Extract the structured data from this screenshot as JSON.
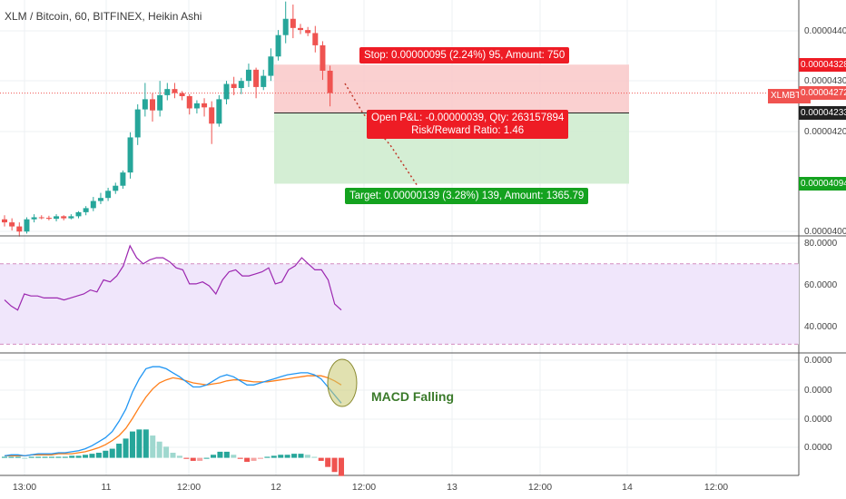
{
  "title": "XLM / Bitcoin, 60, BITFINEX, Heikin Ashi",
  "symbol_tag": "XLMBTC",
  "price_tags": [
    {
      "text": "0.00004328",
      "bg": "#ee1c25",
      "fg": "#ffffff",
      "price": 4.328e-05
    },
    {
      "text": "0.00004272",
      "bg": "#f05350",
      "fg": "#ffffff",
      "price": 4.272e-05
    },
    {
      "text": "0.00004233",
      "bg": "#222222",
      "fg": "#ffffff",
      "price": 4.233e-05
    },
    {
      "text": "0.00004094",
      "bg": "#14a21f",
      "fg": "#ffffff",
      "price": 4.094e-05
    }
  ],
  "price_axis_ticks": [
    "0.00004400",
    "0.00004300",
    "0.00004200",
    "0.00004000"
  ],
  "rsi_axis_ticks": [
    "80.0000",
    "60.0000",
    "40.0000"
  ],
  "macd_axis_ticks": [
    "0.0000",
    "0.0000",
    "0.0000",
    "0.0000"
  ],
  "time_axis_ticks": [
    "13:00",
    "11",
    "12:00",
    "12",
    "12:00",
    "13",
    "12:00",
    "14",
    "12:00"
  ],
  "position": {
    "stop_label": "Stop: 0.00000095 (2.24%) 95, Amount: 750",
    "pnl_line1": "Open P&L: -0.00000039, Qty: 263157894",
    "pnl_line2": "Risk/Reward Ratio: 1.46",
    "target_label": "Target: 0.00000139 (3.28%) 139, Amount: 1365.79",
    "entry": 4.233e-05,
    "stop": 4.328e-05,
    "target": 4.094e-05,
    "current": 4.272e-05
  },
  "annotation": "MACD  Falling",
  "colors": {
    "bull": "#26a69a",
    "bear": "#ef5350",
    "stop_zone": "#f9c8c8",
    "target_zone": "#cdebcd",
    "rsi_line": "#9c27b0",
    "rsi_band": "#f0e6fb",
    "macd_line": "#2196f3",
    "signal_line": "#ff7f1a"
  },
  "chart_data": {
    "type": "candlestick",
    "price_range": [
      3.995e-05,
      4.455e-05
    ],
    "candles": [
      {
        "o": 4.024e-05,
        "h": 4.032e-05,
        "l": 4.01e-05,
        "c": 4.018e-05
      },
      {
        "o": 4.018e-05,
        "h": 4.026e-05,
        "l": 4.002e-05,
        "c": 4.01e-05
      },
      {
        "o": 4.01e-05,
        "h": 4.018e-05,
        "l": 3.99e-05,
        "c": 4e-05
      },
      {
        "o": 4e-05,
        "h": 4.028e-05,
        "l": 3.996e-05,
        "c": 4.024e-05
      },
      {
        "o": 4.024e-05,
        "h": 4.034e-05,
        "l": 4.018e-05,
        "c": 4.028e-05
      },
      {
        "o": 4.028e-05,
        "h": 4.032e-05,
        "l": 4.024e-05,
        "c": 4.027e-05
      },
      {
        "o": 4.027e-05,
        "h": 4.031e-05,
        "l": 4.022e-05,
        "c": 4.025e-05
      },
      {
        "o": 4.025e-05,
        "h": 4.034e-05,
        "l": 4.02e-05,
        "c": 4.03e-05
      },
      {
        "o": 4.03e-05,
        "h": 4.032e-05,
        "l": 4.022e-05,
        "c": 4.026e-05
      },
      {
        "o": 4.026e-05,
        "h": 4.034e-05,
        "l": 4.024e-05,
        "c": 4.03e-05
      },
      {
        "o": 4.03e-05,
        "h": 4.04e-05,
        "l": 4.026e-05,
        "c": 4.038e-05
      },
      {
        "o": 4.038e-05,
        "h": 4.05e-05,
        "l": 4.032e-05,
        "c": 4.046e-05
      },
      {
        "o": 4.046e-05,
        "h": 4.068e-05,
        "l": 4.04e-05,
        "c": 4.06e-05
      },
      {
        "o": 4.06e-05,
        "h": 4.076e-05,
        "l": 4.054e-05,
        "c": 4.066e-05
      },
      {
        "o": 4.066e-05,
        "h": 4.086e-05,
        "l": 4.06e-05,
        "c": 4.08e-05
      },
      {
        "o": 4.08e-05,
        "h": 4.096e-05,
        "l": 4.074e-05,
        "c": 4.09e-05
      },
      {
        "o": 4.09e-05,
        "h": 4.12e-05,
        "l": 4.084e-05,
        "c": 4.116e-05
      },
      {
        "o": 4.116e-05,
        "h": 4.195e-05,
        "l": 4.104e-05,
        "c": 4.185e-05
      },
      {
        "o": 4.185e-05,
        "h": 4.25e-05,
        "l": 4.17e-05,
        "c": 4.24e-05
      },
      {
        "o": 4.24e-05,
        "h": 4.292e-05,
        "l": 4.226e-05,
        "c": 4.26e-05
      },
      {
        "o": 4.26e-05,
        "h": 4.272e-05,
        "l": 4.216e-05,
        "c": 4.238e-05
      },
      {
        "o": 4.238e-05,
        "h": 4.296e-05,
        "l": 4.226e-05,
        "c": 4.268e-05
      },
      {
        "o": 4.268e-05,
        "h": 4.292e-05,
        "l": 4.258e-05,
        "c": 4.28e-05
      },
      {
        "o": 4.28e-05,
        "h": 4.292e-05,
        "l": 4.262e-05,
        "c": 4.272e-05
      },
      {
        "o": 4.272e-05,
        "h": 4.276e-05,
        "l": 4.258e-05,
        "c": 4.266e-05
      },
      {
        "o": 4.266e-05,
        "h": 4.27e-05,
        "l": 4.23e-05,
        "c": 4.242e-05
      },
      {
        "o": 4.242e-05,
        "h": 4.258e-05,
        "l": 4.232e-05,
        "c": 4.252e-05
      },
      {
        "o": 4.252e-05,
        "h": 4.262e-05,
        "l": 4.226e-05,
        "c": 4.244e-05
      },
      {
        "o": 4.244e-05,
        "h": 4.256e-05,
        "l": 4.172e-05,
        "c": 4.212e-05
      },
      {
        "o": 4.212e-05,
        "h": 4.268e-05,
        "l": 4.206e-05,
        "c": 4.26e-05
      },
      {
        "o": 4.26e-05,
        "h": 4.296e-05,
        "l": 4.25e-05,
        "c": 4.29e-05
      },
      {
        "o": 4.29e-05,
        "h": 4.304e-05,
        "l": 4.268e-05,
        "c": 4.282e-05
      },
      {
        "o": 4.282e-05,
        "h": 4.302e-05,
        "l": 4.27e-05,
        "c": 4.296e-05
      },
      {
        "o": 4.296e-05,
        "h": 4.33e-05,
        "l": 4.284e-05,
        "c": 4.318e-05
      },
      {
        "o": 4.318e-05,
        "h": 4.322e-05,
        "l": 4.262e-05,
        "c": 4.284e-05
      },
      {
        "o": 4.284e-05,
        "h": 4.318e-05,
        "l": 4.278e-05,
        "c": 4.306e-05
      },
      {
        "o": 4.306e-05,
        "h": 4.36e-05,
        "l": 4.296e-05,
        "c": 4.344e-05
      },
      {
        "o": 4.344e-05,
        "h": 4.396e-05,
        "l": 4.336e-05,
        "c": 4.386e-05
      },
      {
        "o": 4.386e-05,
        "h": 4.452e-05,
        "l": 4.37e-05,
        "c": 4.418e-05
      },
      {
        "o": 4.418e-05,
        "h": 4.446e-05,
        "l": 4.38e-05,
        "c": 4.4e-05
      },
      {
        "o": 4.4e-05,
        "h": 4.408e-05,
        "l": 4.388e-05,
        "c": 4.396e-05
      },
      {
        "o": 4.396e-05,
        "h": 4.402e-05,
        "l": 4.384e-05,
        "c": 4.39e-05
      },
      {
        "o": 4.39e-05,
        "h": 4.404e-05,
        "l": 4.352e-05,
        "c": 4.366e-05
      },
      {
        "o": 4.366e-05,
        "h": 4.374e-05,
        "l": 4.298e-05,
        "c": 4.316e-05
      },
      {
        "o": 4.316e-05,
        "h": 4.326e-05,
        "l": 4.246e-05,
        "c": 4.272e-05
      }
    ],
    "rsi": {
      "range": [
        27,
        83
      ],
      "levels": [
        70,
        30
      ],
      "values": [
        52,
        49,
        47,
        55,
        54,
        54,
        53,
        53,
        53,
        52,
        53,
        54,
        55,
        57,
        56,
        62,
        61,
        64,
        69,
        79,
        73,
        70,
        72,
        73,
        73,
        71,
        68,
        67,
        60,
        60,
        61,
        59,
        55,
        62,
        66,
        67,
        64,
        64,
        65,
        66,
        68,
        60,
        61,
        67,
        69,
        73,
        70,
        67,
        67,
        62,
        50,
        47
      ]
    },
    "macd": {
      "range": [
        -12,
        100
      ],
      "macd_line": [
        2,
        3,
        3,
        2,
        3,
        4,
        4,
        4,
        5,
        5,
        6,
        7,
        9,
        12,
        16,
        20,
        26,
        36,
        48,
        65,
        78,
        88,
        90,
        90,
        88,
        84,
        80,
        75,
        70,
        70,
        72,
        76,
        80,
        82,
        80,
        76,
        72,
        72,
        74,
        76,
        78,
        80,
        82,
        83,
        84,
        84,
        82,
        78,
        70,
        62,
        54
      ],
      "signal_line": [
        2,
        2,
        2,
        2,
        3,
        3,
        3,
        3,
        4,
        4,
        4,
        5,
        6,
        8,
        10,
        13,
        17,
        22,
        29,
        39,
        50,
        60,
        68,
        74,
        77,
        79,
        78,
        76,
        74,
        73,
        72,
        73,
        74,
        76,
        77,
        77,
        76,
        75,
        75,
        75,
        76,
        77,
        78,
        79,
        80,
        81,
        81,
        81,
        79,
        76,
        72
      ],
      "histogram": [
        1,
        1,
        1,
        0,
        1,
        1,
        1,
        1,
        1,
        1,
        2,
        2,
        3,
        4,
        5,
        7,
        9,
        14,
        19,
        26,
        28,
        28,
        22,
        16,
        11,
        5,
        2,
        -1,
        -3,
        -3,
        0,
        3,
        6,
        6,
        3,
        -1,
        -4,
        -3,
        -1,
        1,
        2,
        3,
        3,
        4,
        4,
        3,
        1,
        -3,
        -9,
        -14,
        -18
      ]
    }
  }
}
